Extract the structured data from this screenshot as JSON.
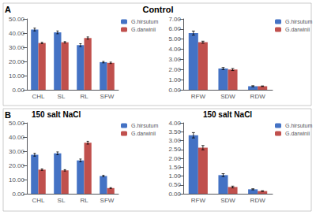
{
  "chart_data": [
    {
      "type": "bar",
      "title": "Control",
      "annotations": [
        "A"
      ],
      "categories": [
        "CHL",
        "SL",
        "RL",
        "SFW"
      ],
      "series": [
        {
          "name": "G.hirsutum",
          "color": "#4472C4",
          "values": [
            42.5,
            40.5,
            31.5,
            19.5
          ],
          "errors": [
            1.0,
            1.0,
            1.0,
            0.5
          ]
        },
        {
          "name": "G.darwinii",
          "color": "#C0504D",
          "values": [
            33.0,
            33.5,
            36.5,
            19.0
          ],
          "errors": [
            0.5,
            0.5,
            0.8,
            0.5
          ]
        }
      ],
      "ylim": [
        0,
        50
      ],
      "yticks": [
        {
          "value": 0,
          "label": "0.00"
        },
        {
          "value": 10,
          "label": "10.00"
        },
        {
          "value": 20,
          "label": "20.00"
        },
        {
          "value": 30,
          "label": "30.00"
        },
        {
          "value": 40,
          "label": "40.00"
        },
        {
          "value": 50,
          "label": "50.00"
        }
      ],
      "grid": false,
      "legend": "upper right"
    },
    {
      "type": "bar",
      "categories": [
        "RFW",
        "SDW",
        "RDW"
      ],
      "series": [
        {
          "name": "G.hirsutum",
          "color": "#4472C4",
          "values": [
            5.6,
            2.1,
            0.35
          ],
          "errors": [
            0.2,
            0.1,
            0.05
          ]
        },
        {
          "name": "G.darwinii",
          "color": "#C0504D",
          "values": [
            4.7,
            2.0,
            0.35
          ],
          "errors": [
            0.1,
            0.1,
            0.03
          ]
        }
      ],
      "ylim": [
        0,
        7.0
      ],
      "yticks": [
        {
          "value": 0,
          "label": "0.00"
        },
        {
          "value": 1,
          "label": "1.00"
        },
        {
          "value": 2,
          "label": "2.00"
        },
        {
          "value": 3,
          "label": "3.00"
        },
        {
          "value": 4,
          "label": "4.00"
        },
        {
          "value": 5,
          "label": "5.00"
        },
        {
          "value": 6,
          "label": "6.00"
        },
        {
          "value": 7,
          "label": "7.00"
        }
      ],
      "grid": false,
      "legend": "upper right"
    },
    {
      "type": "bar",
      "title": "150 salt NaCl",
      "annotations": [
        "B"
      ],
      "categories": [
        "CHL",
        "SL",
        "RL",
        "SFW"
      ],
      "series": [
        {
          "name": "G.hirsutum",
          "color": "#4472C4",
          "values": [
            27.5,
            28.5,
            23.5,
            12.5
          ],
          "errors": [
            1.0,
            1.0,
            1.0,
            0.5
          ]
        },
        {
          "name": "G.darwinii",
          "color": "#C0504D",
          "values": [
            17.0,
            16.5,
            36.0,
            4.0
          ],
          "errors": [
            0.5,
            0.5,
            1.0,
            0.3
          ]
        }
      ],
      "ylim": [
        0,
        50
      ],
      "yticks": [
        {
          "value": 0,
          "label": "0.00"
        },
        {
          "value": 10,
          "label": "10.00"
        },
        {
          "value": 20,
          "label": "20.00"
        },
        {
          "value": 30,
          "label": "30.00"
        },
        {
          "value": 40,
          "label": "40.00"
        },
        {
          "value": 50,
          "label": "50.00"
        }
      ],
      "grid": false,
      "legend": "upper right"
    },
    {
      "type": "bar",
      "title": "150 salt NaCl",
      "categories": [
        "RFW",
        "SDW",
        "RDW"
      ],
      "series": [
        {
          "name": "G.hirsutum",
          "color": "#4472C4",
          "values": [
            3.3,
            1.05,
            0.25
          ],
          "errors": [
            0.15,
            0.08,
            0.03
          ]
        },
        {
          "name": "G.darwinii",
          "color": "#C0504D",
          "values": [
            2.6,
            0.38,
            0.15
          ],
          "errors": [
            0.12,
            0.05,
            0.02
          ]
        }
      ],
      "ylim": [
        0,
        4.0
      ],
      "yticks": [
        {
          "value": 0,
          "label": "0.00"
        },
        {
          "value": 0.5,
          "label": "0.50"
        },
        {
          "value": 1,
          "label": "1.00"
        },
        {
          "value": 1.5,
          "label": "1.50"
        },
        {
          "value": 2,
          "label": "2.00"
        },
        {
          "value": 2.5,
          "label": "2.50"
        },
        {
          "value": 3,
          "label": "3.00"
        },
        {
          "value": 3.5,
          "label": "3.50"
        },
        {
          "value": 4,
          "label": "4.00"
        }
      ],
      "grid": false,
      "legend": "upper right"
    }
  ]
}
